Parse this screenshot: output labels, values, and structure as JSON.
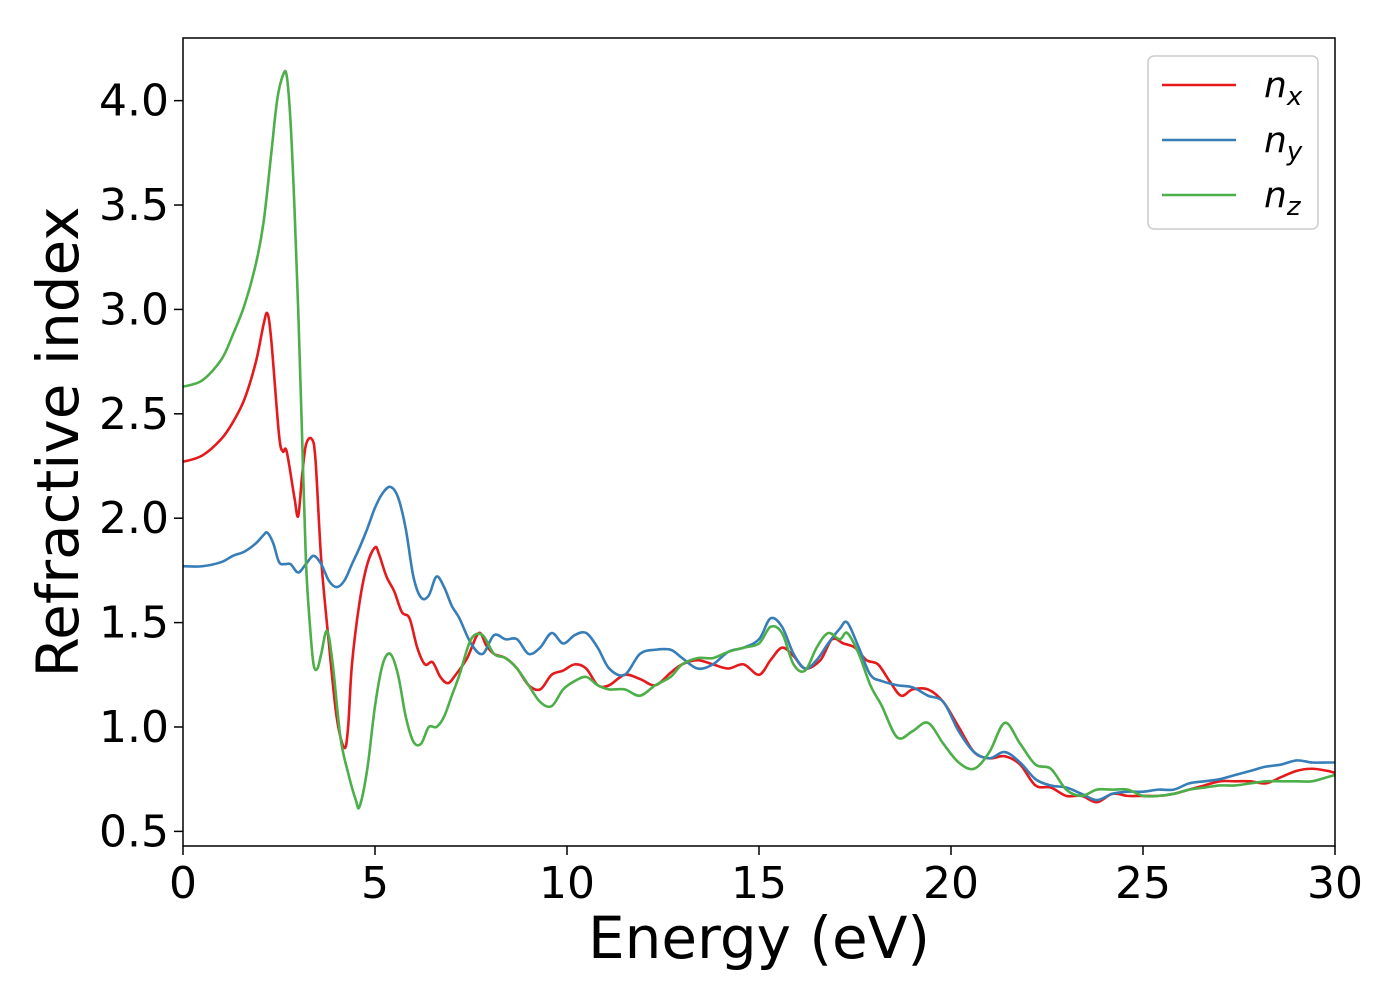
{
  "chart_data": {
    "type": "line",
    "xlabel": "Energy (eV)",
    "ylabel": "Refractive index",
    "xlim": [
      0,
      30
    ],
    "ylim": [
      0.43,
      4.3
    ],
    "xticks": [
      "0",
      "5",
      "10",
      "15",
      "20",
      "25",
      "30"
    ],
    "yticks": [
      "0.5",
      "1.0",
      "1.5",
      "2.0",
      "2.5",
      "3.0",
      "3.5",
      "4.0"
    ],
    "grid": false,
    "legend_position": "top-right",
    "series": [
      {
        "name": "n_x",
        "legend_base": "n",
        "legend_sub": "x",
        "color": "#e41a1c",
        "x": [
          0,
          0.5,
          1.0,
          1.3,
          1.6,
          1.9,
          2.1,
          2.2,
          2.3,
          2.5,
          2.6,
          2.7,
          2.9,
          3.0,
          3.1,
          3.2,
          3.35,
          3.45,
          3.6,
          3.8,
          4.0,
          4.2,
          4.3,
          4.4,
          4.6,
          4.8,
          5.0,
          5.1,
          5.3,
          5.5,
          5.7,
          5.9,
          6.1,
          6.3,
          6.5,
          6.7,
          6.9,
          7.1,
          7.4,
          7.7,
          7.9,
          8.1,
          8.4,
          8.7,
          9.0,
          9.3,
          9.6,
          9.9,
          10.2,
          10.5,
          10.8,
          11.1,
          11.5,
          11.9,
          12.3,
          12.7,
          13.0,
          13.4,
          13.8,
          14.2,
          14.6,
          15.0,
          15.3,
          15.6,
          15.9,
          16.2,
          16.6,
          16.9,
          17.2,
          17.5,
          17.8,
          18.1,
          18.4,
          18.7,
          19.0,
          19.4,
          19.8,
          20.2,
          20.6,
          21.0,
          21.4,
          21.8,
          22.2,
          22.6,
          23.0,
          23.4,
          23.8,
          24.2,
          24.6,
          25.0,
          25.4,
          25.8,
          26.2,
          26.6,
          27.0,
          27.4,
          27.8,
          28.2,
          28.6,
          29.0,
          29.4,
          29.8,
          30.0
        ],
        "y": [
          2.27,
          2.3,
          2.38,
          2.46,
          2.57,
          2.75,
          2.93,
          2.98,
          2.85,
          2.4,
          2.32,
          2.32,
          2.1,
          2.01,
          2.2,
          2.35,
          2.38,
          2.28,
          1.8,
          1.4,
          1.05,
          0.9,
          1.0,
          1.3,
          1.6,
          1.78,
          1.86,
          1.83,
          1.72,
          1.65,
          1.55,
          1.52,
          1.38,
          1.3,
          1.31,
          1.24,
          1.21,
          1.25,
          1.33,
          1.45,
          1.39,
          1.35,
          1.33,
          1.28,
          1.2,
          1.18,
          1.25,
          1.27,
          1.3,
          1.28,
          1.2,
          1.2,
          1.25,
          1.23,
          1.2,
          1.26,
          1.3,
          1.32,
          1.3,
          1.28,
          1.3,
          1.25,
          1.32,
          1.38,
          1.34,
          1.28,
          1.32,
          1.42,
          1.4,
          1.38,
          1.32,
          1.3,
          1.22,
          1.15,
          1.18,
          1.18,
          1.12,
          1.0,
          0.88,
          0.85,
          0.86,
          0.82,
          0.72,
          0.71,
          0.67,
          0.67,
          0.64,
          0.68,
          0.67,
          0.67,
          0.67,
          0.68,
          0.7,
          0.72,
          0.74,
          0.74,
          0.74,
          0.73,
          0.76,
          0.79,
          0.8,
          0.79,
          0.78
        ]
      },
      {
        "name": "n_y",
        "legend_base": "n",
        "legend_sub": "y",
        "color": "#377eb8",
        "x": [
          0,
          0.5,
          1.0,
          1.3,
          1.6,
          1.9,
          2.1,
          2.2,
          2.35,
          2.5,
          2.65,
          2.8,
          3.0,
          3.2,
          3.4,
          3.6,
          3.8,
          4.0,
          4.2,
          4.4,
          4.6,
          4.8,
          5.0,
          5.2,
          5.4,
          5.6,
          5.8,
          6.0,
          6.2,
          6.4,
          6.6,
          6.8,
          7.0,
          7.2,
          7.5,
          7.8,
          8.1,
          8.4,
          8.7,
          9.0,
          9.3,
          9.6,
          9.9,
          10.2,
          10.5,
          10.8,
          11.1,
          11.5,
          11.9,
          12.3,
          12.7,
          13.0,
          13.4,
          13.8,
          14.2,
          14.6,
          15.0,
          15.3,
          15.6,
          15.9,
          16.2,
          16.5,
          16.8,
          17.1,
          17.3,
          17.6,
          17.9,
          18.2,
          18.6,
          19.0,
          19.4,
          19.8,
          20.2,
          20.6,
          21.0,
          21.4,
          21.8,
          22.2,
          22.6,
          23.0,
          23.4,
          23.8,
          24.2,
          24.6,
          25.0,
          25.4,
          25.8,
          26.2,
          26.6,
          27.0,
          27.4,
          27.8,
          28.2,
          28.6,
          29.0,
          29.4,
          29.8,
          30.0
        ],
        "y": [
          1.77,
          1.77,
          1.79,
          1.82,
          1.84,
          1.88,
          1.92,
          1.93,
          1.88,
          1.79,
          1.78,
          1.78,
          1.74,
          1.78,
          1.82,
          1.78,
          1.7,
          1.67,
          1.7,
          1.78,
          1.86,
          1.95,
          2.05,
          2.12,
          2.15,
          2.1,
          1.95,
          1.72,
          1.62,
          1.63,
          1.72,
          1.67,
          1.58,
          1.52,
          1.4,
          1.35,
          1.44,
          1.42,
          1.42,
          1.35,
          1.38,
          1.45,
          1.4,
          1.44,
          1.45,
          1.38,
          1.28,
          1.25,
          1.35,
          1.37,
          1.37,
          1.33,
          1.28,
          1.3,
          1.36,
          1.38,
          1.42,
          1.52,
          1.48,
          1.35,
          1.28,
          1.32,
          1.4,
          1.47,
          1.5,
          1.38,
          1.25,
          1.22,
          1.2,
          1.19,
          1.15,
          1.12,
          0.98,
          0.88,
          0.85,
          0.88,
          0.83,
          0.75,
          0.72,
          0.71,
          0.68,
          0.65,
          0.68,
          0.69,
          0.69,
          0.7,
          0.7,
          0.73,
          0.74,
          0.75,
          0.77,
          0.79,
          0.81,
          0.82,
          0.84,
          0.83,
          0.83,
          0.83
        ]
      },
      {
        "name": "n_z",
        "legend_base": "n",
        "legend_sub": "z",
        "color": "#4daf4a",
        "x": [
          0,
          0.5,
          1.0,
          1.3,
          1.6,
          1.9,
          2.1,
          2.3,
          2.45,
          2.6,
          2.7,
          2.8,
          2.9,
          3.0,
          3.1,
          3.2,
          3.3,
          3.4,
          3.5,
          3.6,
          3.75,
          3.9,
          4.1,
          4.3,
          4.5,
          4.6,
          4.8,
          5.0,
          5.2,
          5.4,
          5.6,
          5.8,
          6.0,
          6.2,
          6.4,
          6.6,
          6.8,
          7.0,
          7.2,
          7.5,
          7.8,
          8.1,
          8.4,
          8.7,
          9.0,
          9.3,
          9.6,
          9.9,
          10.2,
          10.5,
          10.8,
          11.1,
          11.5,
          11.9,
          12.3,
          12.7,
          13.0,
          13.4,
          13.8,
          14.2,
          14.6,
          15.0,
          15.3,
          15.6,
          15.9,
          16.2,
          16.5,
          16.8,
          17.1,
          17.3,
          17.6,
          17.9,
          18.2,
          18.6,
          19.0,
          19.4,
          19.8,
          20.2,
          20.6,
          21.0,
          21.4,
          21.8,
          22.2,
          22.6,
          23.0,
          23.4,
          23.8,
          24.2,
          24.6,
          25.0,
          25.4,
          25.8,
          26.2,
          26.6,
          27.0,
          27.4,
          27.8,
          28.2,
          28.6,
          29.0,
          29.4,
          29.8,
          30.0
        ],
        "y": [
          2.63,
          2.66,
          2.76,
          2.88,
          3.02,
          3.22,
          3.42,
          3.75,
          4.0,
          4.12,
          4.12,
          3.9,
          3.5,
          3.0,
          2.4,
          1.8,
          1.5,
          1.3,
          1.28,
          1.35,
          1.46,
          1.3,
          0.95,
          0.78,
          0.65,
          0.62,
          0.8,
          1.1,
          1.3,
          1.35,
          1.25,
          1.05,
          0.93,
          0.92,
          1.0,
          1.0,
          1.05,
          1.15,
          1.25,
          1.42,
          1.44,
          1.35,
          1.33,
          1.28,
          1.2,
          1.12,
          1.1,
          1.18,
          1.22,
          1.24,
          1.2,
          1.18,
          1.18,
          1.15,
          1.2,
          1.24,
          1.3,
          1.33,
          1.33,
          1.36,
          1.38,
          1.4,
          1.48,
          1.45,
          1.3,
          1.27,
          1.38,
          1.45,
          1.42,
          1.45,
          1.35,
          1.2,
          1.1,
          0.95,
          0.98,
          1.02,
          0.92,
          0.83,
          0.8,
          0.88,
          1.02,
          0.92,
          0.82,
          0.8,
          0.7,
          0.67,
          0.7,
          0.7,
          0.7,
          0.67,
          0.67,
          0.68,
          0.7,
          0.71,
          0.72,
          0.72,
          0.73,
          0.74,
          0.74,
          0.74,
          0.74,
          0.76,
          0.77
        ]
      }
    ]
  }
}
